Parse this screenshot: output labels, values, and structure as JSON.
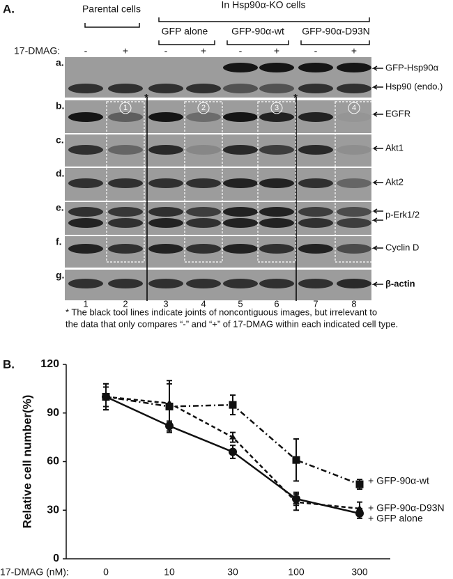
{
  "panel_a": {
    "label": "A.",
    "groups": [
      "Parental cells",
      "In Hsp90α-KO cells"
    ],
    "subgroups": [
      "GFP alone",
      "GFP-90α-wt",
      "GFP-90α-D93N"
    ],
    "treatment_label": "17-DMAG:",
    "treatments": [
      "-",
      "+",
      "-",
      "+",
      "-",
      "+",
      "-",
      "+"
    ],
    "rows": [
      {
        "letter": "a.",
        "targets": [
          "GFP-Hsp90α",
          "Hsp90 (endo.)"
        ]
      },
      {
        "letter": "b.",
        "targets": [
          "EGFR"
        ]
      },
      {
        "letter": "c.",
        "targets": [
          "Akt1"
        ]
      },
      {
        "letter": "d.",
        "targets": [
          "Akt2"
        ]
      },
      {
        "letter": "e.",
        "targets": [
          "p-Erk1/2"
        ]
      },
      {
        "letter": "f.",
        "targets": [
          "Cyclin D"
        ]
      },
      {
        "letter": "g.",
        "targets": [
          "β-actin"
        ]
      }
    ],
    "lanes": [
      "1",
      "2",
      "3",
      "4",
      "5",
      "6",
      "7",
      "8"
    ],
    "boxes": [
      "1",
      "2",
      "3",
      "4"
    ],
    "asterisks": [
      "*",
      "*"
    ],
    "footnote": [
      "* The black tool lines indicate joints of noncontiguous images, but irrelevant to",
      "the data that only compares “-” and “+” of 17-DMAG within each indicated cell type."
    ]
  },
  "chart_data": {
    "type": "line",
    "panel_label": "B.",
    "y_label": "Relative cell number(%)",
    "x_label": "17-DMAG  (nM):",
    "categories": [
      "0",
      "10",
      "30",
      "100",
      "300"
    ],
    "ylim": [
      0,
      120
    ],
    "yticks": [
      0,
      30,
      60,
      90,
      120
    ],
    "series": [
      {
        "name": "+ GFP-90α-wt",
        "color": "#111111",
        "line_style": "dashdot",
        "marker": "square",
        "values": [
          100,
          94,
          95,
          61,
          46
        ],
        "errors": [
          8,
          16,
          6,
          13,
          3
        ]
      },
      {
        "name": "+ GFP-90α-D93N",
        "color": "#111111",
        "line_style": "dashed",
        "marker": "triangle",
        "values": [
          100,
          96,
          75,
          35,
          31
        ],
        "errors": [
          6,
          12,
          3,
          5,
          4
        ]
      },
      {
        "name": "+ GFP alone",
        "color": "#111111",
        "line_style": "solid",
        "marker": "circle",
        "values": [
          100,
          82,
          66,
          37,
          28
        ],
        "errors": [
          8,
          3,
          4,
          4,
          3
        ]
      }
    ]
  }
}
